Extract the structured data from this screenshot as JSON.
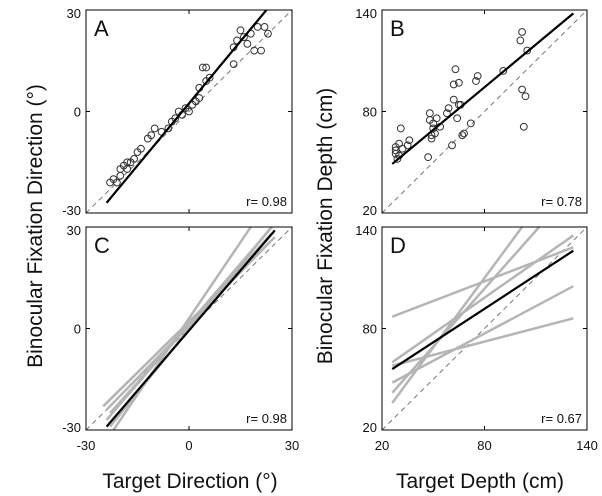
{
  "figure": {
    "ylabel_left": "Binocular Fixation Direction (°)",
    "ylabel_right": "Binocular Fixation Depth (cm)",
    "xlabel_left": "Target Direction (°)",
    "xlabel_right": "Target Depth (cm)"
  },
  "chart_data": [
    {
      "panel": "A",
      "type": "scatter",
      "xlim": [
        -30,
        30
      ],
      "ylim": [
        -30,
        30
      ],
      "xticks": [],
      "yticks": [
        "-30",
        "0",
        "30"
      ],
      "annotation": "r= 0.98",
      "identity_line": [
        [
          -30,
          -30
        ],
        [
          30,
          30
        ]
      ],
      "fit_line": [
        [
          -24,
          -27
        ],
        [
          25,
          33
        ]
      ],
      "points": [
        [
          -23,
          -21
        ],
        [
          -22,
          -20
        ],
        [
          -21,
          -21
        ],
        [
          -20,
          -19
        ],
        [
          -20,
          -17
        ],
        [
          -19,
          -16
        ],
        [
          -18,
          -15
        ],
        [
          -18,
          -17
        ],
        [
          -17,
          -15
        ],
        [
          -16,
          -14
        ],
        [
          -15,
          -12
        ],
        [
          -14,
          -11
        ],
        [
          -12,
          -8
        ],
        [
          -11,
          -7
        ],
        [
          -10,
          -5
        ],
        [
          -8,
          -6
        ],
        [
          -6,
          -5
        ],
        [
          -5,
          -3
        ],
        [
          -4,
          -2
        ],
        [
          -3,
          0
        ],
        [
          -2,
          -1
        ],
        [
          -1,
          1
        ],
        [
          0,
          0
        ],
        [
          1,
          2
        ],
        [
          2,
          3
        ],
        [
          3,
          4
        ],
        [
          3,
          7
        ],
        [
          4,
          13
        ],
        [
          5,
          13
        ],
        [
          5,
          9
        ],
        [
          6,
          10
        ],
        [
          13,
          14
        ],
        [
          13,
          19
        ],
        [
          14,
          21
        ],
        [
          15,
          24
        ],
        [
          16,
          22
        ],
        [
          17,
          20
        ],
        [
          18,
          23
        ],
        [
          19,
          18
        ],
        [
          20,
          25
        ],
        [
          21,
          18
        ],
        [
          22,
          25
        ],
        [
          23,
          23
        ]
      ]
    },
    {
      "panel": "B",
      "type": "scatter",
      "xlim": [
        20,
        140
      ],
      "ylim": [
        20,
        140
      ],
      "xticks": [],
      "yticks": [
        "20",
        "80",
        "140"
      ],
      "annotation": "r= 0.78",
      "identity_line": [
        [
          20,
          20
        ],
        [
          140,
          140
        ]
      ],
      "fit_line": [
        [
          26,
          49
        ],
        [
          132,
          138
        ]
      ],
      "points": [
        [
          28,
          55
        ],
        [
          28,
          57
        ],
        [
          28,
          59
        ],
        [
          29,
          52
        ],
        [
          30,
          54
        ],
        [
          30,
          61
        ],
        [
          31,
          70
        ],
        [
          32,
          58
        ],
        [
          35,
          60
        ],
        [
          36,
          63
        ],
        [
          47,
          53
        ],
        [
          48,
          75
        ],
        [
          48,
          79
        ],
        [
          49,
          64
        ],
        [
          49,
          66
        ],
        [
          50,
          70
        ],
        [
          50,
          73
        ],
        [
          51,
          67
        ],
        [
          52,
          76
        ],
        [
          54,
          71
        ],
        [
          58,
          79
        ],
        [
          59,
          82
        ],
        [
          61,
          60
        ],
        [
          62,
          87
        ],
        [
          62,
          96
        ],
        [
          63,
          105
        ],
        [
          64,
          76
        ],
        [
          65,
          84
        ],
        [
          65,
          97
        ],
        [
          66,
          84
        ],
        [
          67,
          66
        ],
        [
          68,
          67
        ],
        [
          72,
          73
        ],
        [
          75,
          98
        ],
        [
          76,
          101
        ],
        [
          91,
          104
        ],
        [
          102,
          144
        ],
        [
          102,
          127
        ],
        [
          101,
          122
        ],
        [
          102,
          93
        ],
        [
          103,
          71
        ],
        [
          104,
          89
        ],
        [
          105,
          116
        ]
      ]
    },
    {
      "panel": "C",
      "type": "line",
      "xlim": [
        -30,
        30
      ],
      "ylim": [
        -30,
        30
      ],
      "xticks": [
        "-30",
        "0",
        "30"
      ],
      "yticks": [
        "-30",
        "0",
        "30"
      ],
      "annotation": "r= 0.98",
      "identity_line": [
        [
          -30,
          -30
        ],
        [
          30,
          30
        ]
      ],
      "mean_line": [
        [
          -24,
          -29
        ],
        [
          25,
          29
        ]
      ],
      "subject_lines": [
        [
          [
            -25,
            -23
          ],
          [
            24,
            26
          ]
        ],
        [
          [
            -24,
            -24
          ],
          [
            23,
            25
          ]
        ],
        [
          [
            -23,
            -25
          ],
          [
            24,
            28
          ]
        ],
        [
          [
            -24,
            -27
          ],
          [
            25,
            31
          ]
        ],
        [
          [
            -23,
            -29
          ],
          [
            24,
            30
          ]
        ],
        [
          [
            -22,
            -30
          ],
          [
            20,
            33
          ]
        ],
        [
          [
            -24,
            -22
          ],
          [
            25,
            27
          ]
        ]
      ]
    },
    {
      "panel": "D",
      "type": "line",
      "xlim": [
        20,
        140
      ],
      "ylim": [
        20,
        140
      ],
      "xticks": [
        "20",
        "80",
        "140"
      ],
      "yticks": [
        "20",
        "80",
        "140"
      ],
      "annotation": "r= 0.67",
      "identity_line": [
        [
          20,
          20
        ],
        [
          140,
          140
        ]
      ],
      "mean_line": [
        [
          26,
          56
        ],
        [
          132,
          126
        ]
      ],
      "subject_lines": [
        [
          [
            26,
            87
          ],
          [
            132,
            128
          ]
        ],
        [
          [
            26,
            60
          ],
          [
            132,
            135
          ]
        ],
        [
          [
            26,
            58
          ],
          [
            132,
            86
          ]
        ],
        [
          [
            26,
            48
          ],
          [
            132,
            105
          ]
        ],
        [
          [
            26,
            42
          ],
          [
            112,
            140
          ]
        ],
        [
          [
            26,
            36
          ],
          [
            102,
            140
          ]
        ]
      ]
    }
  ],
  "colors": {
    "mean_line": "#000000",
    "subject_line": "#b5b5b5",
    "identity_line": "#777777",
    "marker": "#333333",
    "frame": "#000000"
  }
}
